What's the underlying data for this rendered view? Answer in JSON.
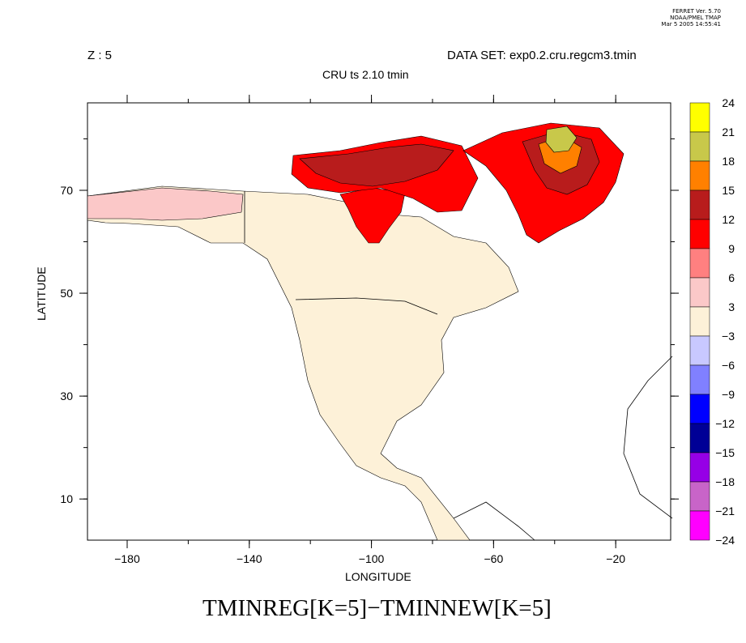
{
  "header": {
    "ferret_lines": [
      "FERRET Ver. 5.70",
      "NOAA/PMEL TMAP",
      "Mar  5 2005 14:55:41"
    ],
    "z_label": "Z : 5",
    "dataset_label": "DATA SET: exp0.2.cru.regcm3.tmin",
    "subtitle": "CRU ts 2.10 tmin"
  },
  "axes": {
    "xlabel": "LONGITUDE",
    "ylabel": "LATITUDE",
    "x_ticks": [
      "−180",
      "−140",
      "−100",
      "−60",
      "−20"
    ],
    "y_ticks": [
      "10",
      "30",
      "50",
      "70"
    ]
  },
  "map": {
    "variable_title": "TMINREG[K=5]−TMINNEW[K=5]",
    "projection": "lat-lon",
    "lon_range": [
      -193,
      -2
    ],
    "lat_range": [
      2,
      87
    ],
    "regions": [
      {
        "name": "north-america-mainland",
        "color": "#fdf1d8"
      },
      {
        "name": "alaska-coast-warm",
        "color": "#fbc8c8"
      },
      {
        "name": "hudson-bay-west-hot",
        "color": "#ff0000"
      },
      {
        "name": "arctic-islands-hot",
        "color": "#ff0000"
      },
      {
        "name": "arctic-islands-hotter",
        "color": "#b81c1c"
      },
      {
        "name": "greenland-hot",
        "color": "#ff0000"
      },
      {
        "name": "greenland-core",
        "color": "#b81c1c"
      },
      {
        "name": "greenland-peak",
        "color": "#ff8000"
      },
      {
        "name": "greenland-summit",
        "color": "#c8c84a"
      }
    ]
  },
  "colorbar": {
    "labels": [
      "24",
      "21",
      "18",
      "15",
      "12",
      "9",
      "6",
      "3",
      "−3",
      "−6",
      "−9",
      "−12",
      "−15",
      "−18",
      "−21",
      "−24"
    ],
    "colors": [
      "#ffff00",
      "#c8c84a",
      "#ff8000",
      "#b81c1c",
      "#ff0000",
      "#ff8080",
      "#fbc8c8",
      "#fdf1d8",
      "#c8c8ff",
      "#8080ff",
      "#0000ff",
      "#000096",
      "#9600e6",
      "#c864c8",
      "#ff00ff"
    ]
  }
}
